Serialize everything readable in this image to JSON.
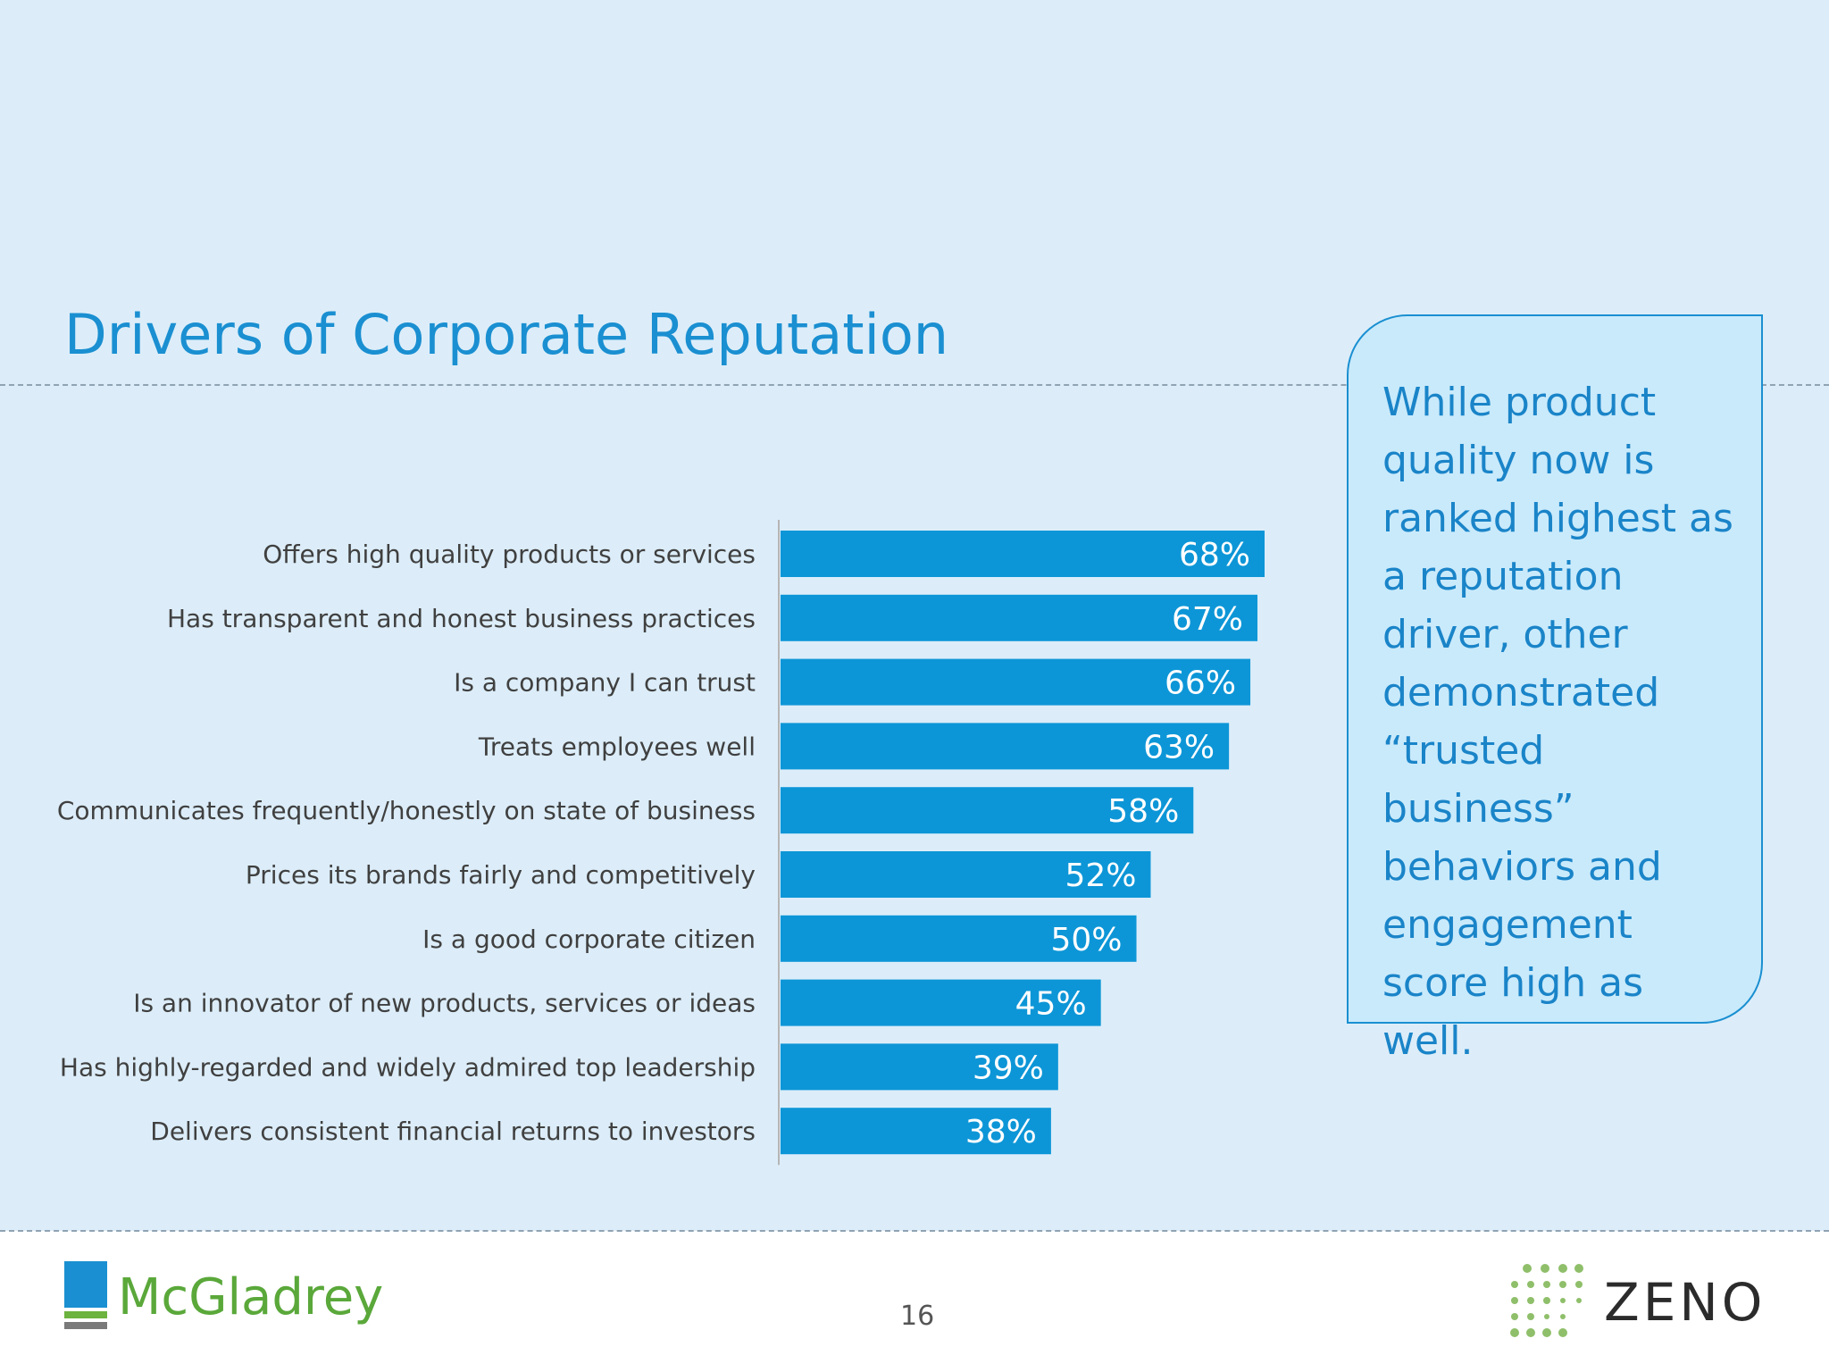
{
  "slide": {
    "title": "Drivers of Corporate Reputation",
    "page_number": "16"
  },
  "callout": {
    "text": "While product quality now is ranked highest as a reputation driver, other demonstrated “trusted business” behaviors and engagement score high as well."
  },
  "footer": {
    "left_logo_text": "McGladrey",
    "right_logo_text": "ZENO"
  },
  "colors": {
    "bar": "#0d96d7",
    "title": "#1a8fd1",
    "background": "#dcedf9",
    "callout_fill": "#c9eafb",
    "mcgladrey_green": "#5aa83a",
    "zeno_dots_green": "#8fbf6a"
  },
  "chart_data": {
    "type": "bar",
    "orientation": "horizontal",
    "categories": [
      "Offers high quality products or services",
      "Has transparent and honest business practices",
      "Is a company I can trust",
      "Treats employees well",
      "Communicates frequently/honestly on state of business",
      "Prices its brands fairly and competitively",
      "Is a good corporate citizen",
      "Is an innovator of new products, services or ideas",
      "Has highly-regarded and widely admired top leadership",
      "Delivers consistent financial returns to investors"
    ],
    "values": [
      68,
      67,
      66,
      63,
      58,
      52,
      50,
      45,
      39,
      38
    ],
    "value_labels": [
      "68%",
      "67%",
      "66%",
      "63%",
      "58%",
      "52%",
      "50%",
      "45%",
      "39%",
      "38%"
    ],
    "unit": "%",
    "xlim": [
      0,
      100
    ],
    "grid": false,
    "legend": "none"
  }
}
